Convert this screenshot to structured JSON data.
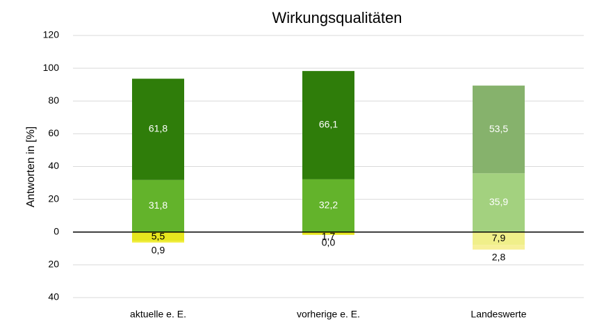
{
  "chart_data": {
    "type": "diverging_stacked_bar",
    "title": "Wirkungsqualitäten",
    "y_label": "Antworten in [%]",
    "categories": [
      "aktuelle e. E.",
      "vorherige e. E.",
      "Landeswerte"
    ],
    "series": [
      {
        "colors": [
          "#63b32b",
          "#63b32b",
          "#a3d17f"
        ],
        "label_color": "#ffffff",
        "values": [
          31.8,
          32.2,
          35.9
        ],
        "value_labels": [
          "31,8",
          "32,2",
          "35,9"
        ]
      },
      {
        "colors": [
          "#2f7d0a",
          "#2f7d0a",
          "#86b26c"
        ],
        "label_color": "#ffffff",
        "values": [
          61.8,
          66.1,
          53.5
        ],
        "value_labels": [
          "61,8",
          "66,1",
          "53,5"
        ]
      },
      {
        "colors": [
          "#e6e61e",
          "#e6e61e",
          "#f0ef8a"
        ],
        "label_color": "#000000",
        "values": [
          -5.5,
          -1.7,
          -7.9
        ],
        "value_labels": [
          "5,5",
          "1,7",
          "7,9"
        ]
      },
      {
        "colors": [
          "#f2ee3a",
          "#f2ee3a",
          "#f7f09a"
        ],
        "label_color": "#000000",
        "values": [
          -0.9,
          0.0,
          -2.8
        ],
        "value_labels": [
          "0,9",
          "0,0",
          "2,8"
        ]
      }
    ],
    "ylim": [
      -40,
      120
    ],
    "yticks": [
      {
        "value": -40,
        "label": "40"
      },
      {
        "value": -20,
        "label": "20"
      },
      0,
      20,
      40,
      60,
      80,
      100,
      120
    ],
    "grid": true
  }
}
